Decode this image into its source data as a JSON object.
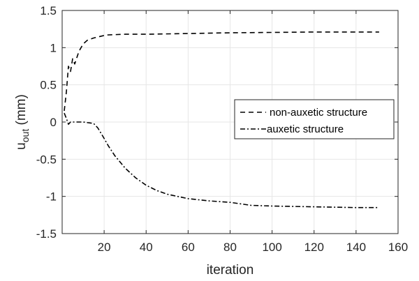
{
  "chart_data": {
    "type": "line",
    "xlabel": "iteration",
    "ylabel_main": "u",
    "ylabel_sub": "out",
    "ylabel_unit": " (mm)",
    "xlim": [
      0,
      160
    ],
    "ylim": [
      -1.5,
      1.5
    ],
    "xticks": [
      20,
      40,
      60,
      80,
      100,
      120,
      140,
      160
    ],
    "yticks": [
      -1.5,
      -1,
      -0.5,
      0,
      0.5,
      1,
      1.5
    ],
    "xtick_labels": [
      "20",
      "40",
      "60",
      "80",
      "100",
      "120",
      "140",
      "160"
    ],
    "ytick_labels": [
      "-1.5",
      "-1",
      "-0.5",
      "0",
      "0.5",
      "1",
      "1.5"
    ],
    "grid": true,
    "legend_placement": "right",
    "series": [
      {
        "name": "non-auxetic structure",
        "style": "dashed",
        "color": "#000000",
        "x": [
          1,
          2,
          3,
          4,
          5,
          6,
          8,
          10,
          12,
          15,
          18,
          21,
          25,
          30,
          40,
          60,
          80,
          100,
          120,
          140,
          151
        ],
        "y": [
          0.15,
          0.4,
          0.75,
          0.68,
          0.85,
          0.78,
          0.95,
          1.05,
          1.1,
          1.13,
          1.15,
          1.17,
          1.175,
          1.18,
          1.18,
          1.19,
          1.2,
          1.205,
          1.21,
          1.21,
          1.21
        ]
      },
      {
        "name": "auxetic structure",
        "style": "dashdot",
        "color": "#000000",
        "x": [
          1,
          2,
          3,
          4,
          6,
          10,
          15,
          17,
          20,
          22,
          25,
          30,
          35,
          40,
          45,
          50,
          60,
          70,
          80,
          90,
          100,
          120,
          140,
          151
        ],
        "y": [
          0.12,
          0.05,
          -0.03,
          0.0,
          0.0,
          0.0,
          -0.02,
          -0.08,
          -0.22,
          -0.32,
          -0.45,
          -0.62,
          -0.75,
          -0.85,
          -0.92,
          -0.97,
          -1.03,
          -1.06,
          -1.08,
          -1.12,
          -1.13,
          -1.14,
          -1.15,
          -1.15
        ]
      }
    ]
  }
}
